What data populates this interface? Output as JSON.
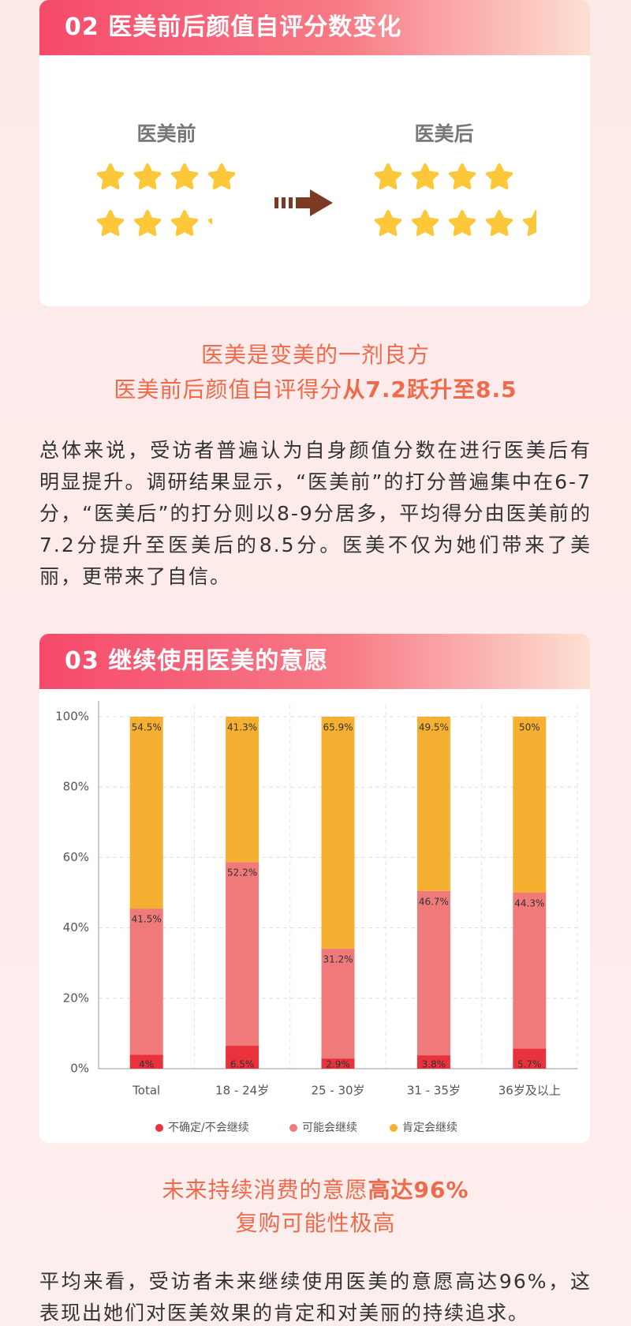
{
  "section_02": {
    "title": "02 医美前后颜值自评分数变化",
    "before_label": "医美前",
    "after_label": "医美后",
    "before_score": 7.2,
    "after_score": 8.5,
    "headline_1": "医美是变美的一剂良方",
    "headline_2": "医美前后颜值自评得分",
    "headline_2_highlight": "从7.2跃升至8.5",
    "paragraph": "总体来说，受访者普遍认为自身颜值分数在进行医美后有明显提升。调研结果显示，“医美前”的打分普遍集中在6-7分，“医美后”的打分则以8-9分居多，平均得分由医美前的7.2分提升至医美后的8.5分。医美不仅为她们带来了美丽，更带来了自信。"
  },
  "section_03": {
    "title": "03 继续使用医美的意愿",
    "headline_1": "未来持续消费的意愿",
    "headline_1_highlight": "高达96%",
    "headline_2": "复购可能性极高",
    "paragraph": "平均来看，受访者未来继续使用医美的意愿高达96%，这表现出她们对医美效果的肯定和对美丽的持续追求。"
  },
  "chart_data": {
    "type": "stacked_bar",
    "categories": [
      "Total",
      "18 - 24岁",
      "25 - 30岁",
      "31 - 35岁",
      "36岁及以上"
    ],
    "series": [
      {
        "name": "不确定/不会继续",
        "color": "#e8323c",
        "values": [
          4,
          6.5,
          2.9,
          3.8,
          5.7
        ],
        "value_labels": [
          "4%",
          "6.5%",
          "2.9%",
          "3.8%",
          "5.7%"
        ]
      },
      {
        "name": "可能会继续",
        "color": "#f07a7a",
        "values": [
          41.5,
          52.2,
          31.2,
          46.7,
          44.3
        ],
        "value_labels": [
          "41.5%",
          "52.2%",
          "31.2%",
          "46.7%",
          "44.3%"
        ]
      },
      {
        "name": "肯定会继续",
        "color": "#f5b031",
        "values": [
          54.5,
          41.3,
          65.9,
          49.5,
          50
        ],
        "value_labels": [
          "54.5%",
          "41.3%",
          "65.9%",
          "49.5%",
          "50%"
        ]
      }
    ],
    "ylim": [
      0,
      100
    ],
    "yticks": [
      {
        "value": 0,
        "label": "0%"
      },
      {
        "value": 20,
        "label": "20%"
      },
      {
        "value": 40,
        "label": "40%"
      },
      {
        "value": 60,
        "label": "60%"
      },
      {
        "value": 80,
        "label": "80%"
      },
      {
        "value": 100,
        "label": "100%"
      }
    ],
    "grid": true,
    "legend": "bottom"
  }
}
